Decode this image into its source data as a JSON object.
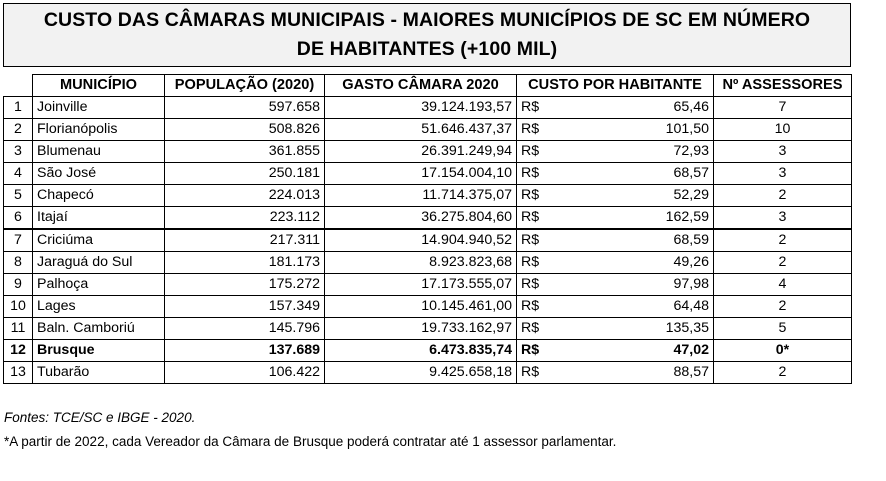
{
  "title": {
    "line1": "CUSTO DAS CÂMARAS MUNICIPAIS - MAIORES MUNICÍPIOS DE SC EM NÚMERO",
    "line2": "DE HABITANTES (+100 MIL)"
  },
  "headers": [
    "MUNICÍPIO",
    "POPULAÇÃO (2020)",
    "GASTO CÂMARA 2020",
    "CUSTO POR HABITANTE",
    "Nº ASSESSORES"
  ],
  "currency": "R$",
  "rows": [
    {
      "n": "1",
      "municipio": "Joinville",
      "populacao": "597.658",
      "gasto": "39.124.193,57",
      "custo": "65,46",
      "assessores": "7"
    },
    {
      "n": "2",
      "municipio": "Florianópolis",
      "populacao": "508.826",
      "gasto": "51.646.437,37",
      "custo": "101,50",
      "assessores": "10"
    },
    {
      "n": "3",
      "municipio": "Blumenau",
      "populacao": "361.855",
      "gasto": "26.391.249,94",
      "custo": "72,93",
      "assessores": "3"
    },
    {
      "n": "4",
      "municipio": "São José",
      "populacao": "250.181",
      "gasto": "17.154.004,10",
      "custo": "68,57",
      "assessores": "3"
    },
    {
      "n": "5",
      "municipio": "Chapecó",
      "populacao": "224.013",
      "gasto": "11.714.375,07",
      "custo": "52,29",
      "assessores": "2"
    },
    {
      "n": "6",
      "municipio": "Itajaí",
      "populacao": "223.112",
      "gasto": "36.275.804,60",
      "custo": "162,59",
      "assessores": "3"
    },
    {
      "n": "7",
      "municipio": "Criciúma",
      "populacao": "217.311",
      "gasto": "14.904.940,52",
      "custo": "68,59",
      "assessores": "2"
    },
    {
      "n": "8",
      "municipio": "Jaraguá do Sul",
      "populacao": "181.173",
      "gasto": "8.923.823,68",
      "custo": "49,26",
      "assessores": "2"
    },
    {
      "n": "9",
      "municipio": "Palhoça",
      "populacao": "175.272",
      "gasto": "17.173.555,07",
      "custo": "97,98",
      "assessores": "4"
    },
    {
      "n": "10",
      "municipio": "Lages",
      "populacao": "157.349",
      "gasto": "10.145.461,00",
      "custo": "64,48",
      "assessores": "2"
    },
    {
      "n": "11",
      "municipio": "Baln. Camboriú",
      "populacao": "145.796",
      "gasto": "19.733.162,97",
      "custo": "135,35",
      "assessores": "5"
    },
    {
      "n": "12",
      "municipio": "Brusque",
      "populacao": "137.689",
      "gasto": "6.473.835,74",
      "custo": "47,02",
      "assessores": "0*"
    },
    {
      "n": "13",
      "municipio": "Tubarão",
      "populacao": "106.422",
      "gasto": "9.425.658,18",
      "custo": "88,57",
      "assessores": "2"
    }
  ],
  "footnotes": {
    "fontes": "Fontes: TCE/SC e IBGE - 2020.",
    "nota": "*A partir de 2022, cada Vereador da Câmara de Brusque poderá contratar até 1 assessor parlamentar."
  }
}
